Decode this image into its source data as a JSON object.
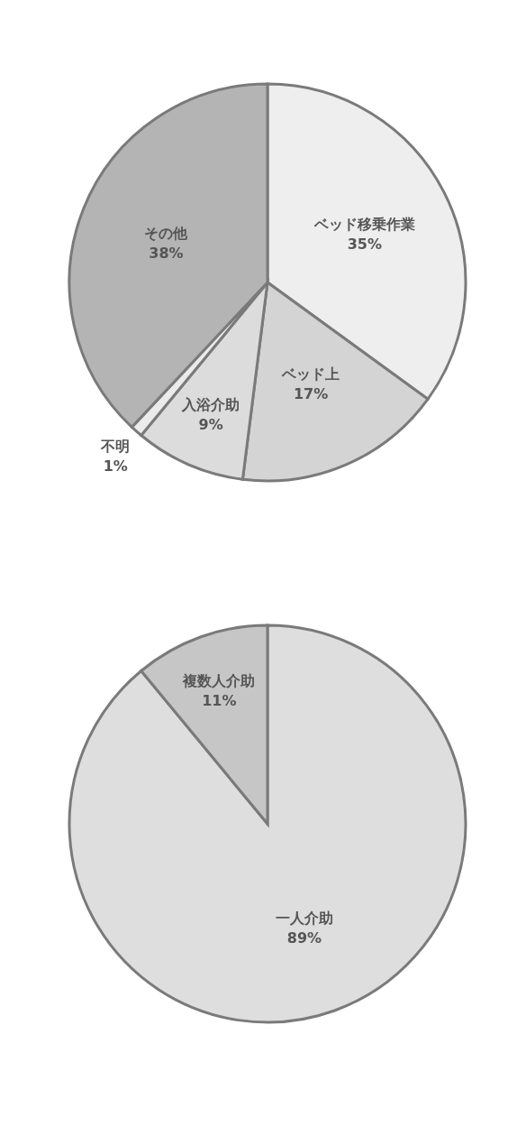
{
  "chart_data": [
    {
      "type": "pie",
      "categories": [
        "ベッド移乗作業",
        "ベッド上",
        "入浴介助",
        "不明",
        "その他"
      ],
      "values": [
        35,
        17,
        9,
        1,
        38
      ],
      "value_labels": [
        "35%",
        "17%",
        "9%",
        "1%",
        "38%"
      ],
      "colors": [
        "#eeeeee",
        "#d4d4d4",
        "#dcdcdc",
        "#ebebeb",
        "#b4b4b4"
      ]
    },
    {
      "type": "pie",
      "categories": [
        "一人介助",
        "複数人介助"
      ],
      "values": [
        89,
        11
      ],
      "value_labels": [
        "89%",
        "11%"
      ],
      "colors": [
        "#dedede",
        "#c6c6c6"
      ]
    }
  ]
}
